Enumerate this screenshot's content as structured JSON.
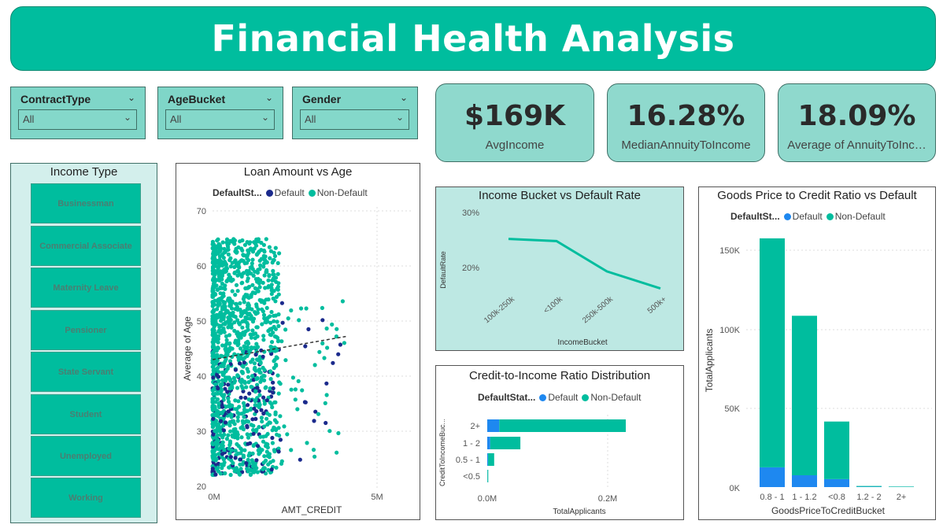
{
  "header": {
    "title": "Financial Health Analysis"
  },
  "slicers": [
    {
      "title": "ContractType",
      "value": "All"
    },
    {
      "title": "AgeBucket",
      "value": "All"
    },
    {
      "title": "Gender",
      "value": "All"
    }
  ],
  "kpis": [
    {
      "value": "$169K",
      "label": "AvgIncome"
    },
    {
      "value": "16.28%",
      "label": "MedianAnnuityToIncome"
    },
    {
      "value": "18.09%",
      "label": "Average of AnnuityToInc…"
    }
  ],
  "income_type": {
    "title": "Income Type",
    "items": [
      "Businessman",
      "Commercial Associate",
      "Maternity Leave",
      "Pensioner",
      "State Servant",
      "Student",
      "Unemployed",
      "Working"
    ]
  },
  "legend": {
    "default": "Default",
    "non_default": "Non-Default"
  },
  "colors": {
    "default": "#1b2a8c",
    "default_bar": "#1e88f0",
    "non_default": "#00bd9e",
    "header": "#00bd9e"
  },
  "scatter": {
    "title": "Loan Amount vs Age",
    "legend_label": "DefaultSt...",
    "xlabel": "AMT_CREDIT",
    "ylabel": "Average of Age",
    "yticks": [
      "70",
      "60",
      "50",
      "40",
      "30",
      "20"
    ],
    "xticks": [
      "0M",
      "5M"
    ]
  },
  "line_chart": {
    "title": "Income Bucket vs Default Rate",
    "xlabel": "IncomeBucket",
    "ylabel": "DefaultRate",
    "yticks": [
      "30%",
      "20%"
    ]
  },
  "credit_chart": {
    "title": "Credit-to-Income Ratio Distribution",
    "legend_label": "DefaultStat...",
    "xlabel": "TotalApplicants",
    "ylabel": "CreditToIncomeBuc...",
    "xticks": [
      "0.0M",
      "0.2M"
    ]
  },
  "goods_chart": {
    "title": "Goods Price to Credit Ratio vs Default",
    "legend_label": "DefaultSt...",
    "xlabel": "GoodsPriceToCreditBucket",
    "ylabel": "TotalApplicants",
    "yticks": [
      "150K",
      "100K",
      "50K",
      "0K"
    ]
  },
  "chart_data": [
    {
      "type": "scatter",
      "title": "Loan Amount vs Age",
      "xlabel": "AMT_CREDIT",
      "ylabel": "Average of Age",
      "xlim": [
        0,
        6000000
      ],
      "ylim": [
        20,
        70
      ],
      "series": [
        {
          "name": "Default"
        },
        {
          "name": "Non-Default"
        }
      ],
      "trend_line": [
        [
          0,
          43
        ],
        [
          4000000,
          47.2
        ]
      ]
    },
    {
      "type": "line",
      "title": "Income Bucket vs Default Rate",
      "xlabel": "IncomeBucket",
      "ylabel": "DefaultRate",
      "categories": [
        "100k-250k",
        "<100k",
        "250k-500k",
        "500k+"
      ],
      "values": [
        25.2,
        24.8,
        19.3,
        16.2
      ],
      "ylim": [
        14,
        32
      ]
    },
    {
      "type": "bar",
      "orientation": "horizontal",
      "stacked": true,
      "title": "Credit-to-Income Ratio Distribution",
      "xlabel": "TotalApplicants",
      "ylabel": "CreditToIncomeBuc...",
      "categories": [
        "2+",
        "1 - 2",
        "0.5 - 1",
        "<0.5"
      ],
      "series": [
        {
          "name": "Default",
          "values": [
            20000,
            5000,
            1500,
            300
          ]
        },
        {
          "name": "Non-Default",
          "values": [
            210000,
            50000,
            10000,
            1500
          ]
        }
      ],
      "xlim": [
        0,
        300000
      ]
    },
    {
      "type": "bar",
      "stacked": true,
      "title": "Goods Price to Credit Ratio vs Default",
      "xlabel": "GoodsPriceToCreditBucket",
      "ylabel": "TotalApplicants",
      "categories": [
        "0.8 - 1",
        "1 - 1.2",
        "<0.8",
        "1.2 - 2",
        "2+"
      ],
      "series": [
        {
          "name": "Default",
          "values": [
            12500,
            7500,
            5000,
            200,
            100
          ]
        },
        {
          "name": "Non-Default",
          "values": [
            145000,
            101000,
            36500,
            500,
            300
          ]
        }
      ],
      "ylim": [
        0,
        165000
      ]
    }
  ]
}
